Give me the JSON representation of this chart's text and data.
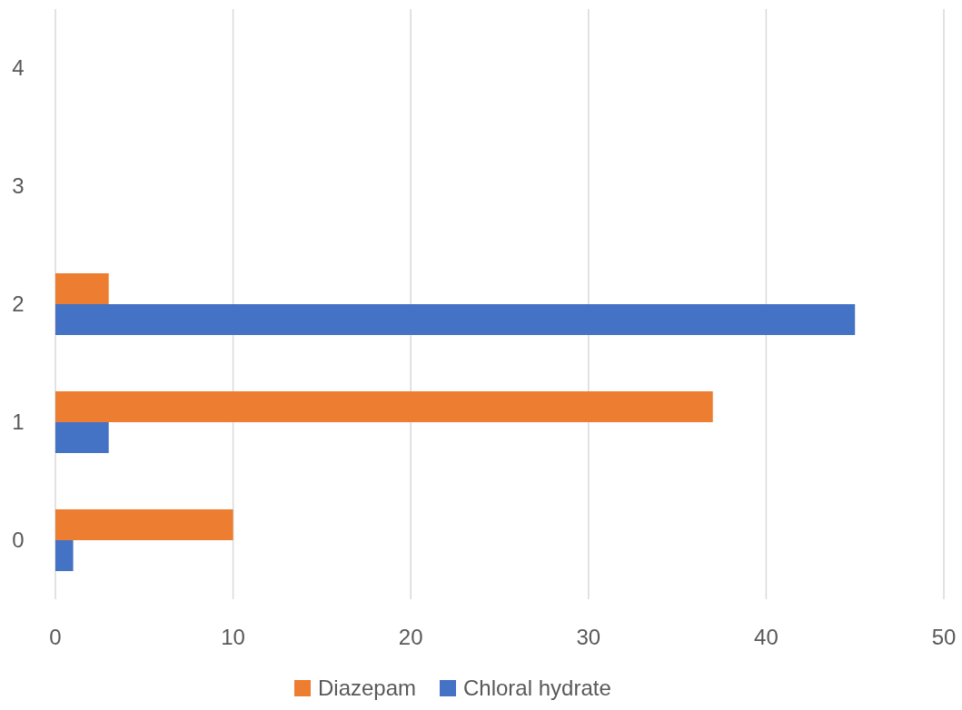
{
  "chart_data": {
    "type": "bar",
    "orientation": "horizontal",
    "categories": [
      "4",
      "3",
      "2",
      "1",
      "0"
    ],
    "series": [
      {
        "name": "Diazepam",
        "color": "#ed7d31",
        "values": [
          null,
          null,
          3,
          37,
          10
        ]
      },
      {
        "name": "Chloral hydrate",
        "color": "#4472c4",
        "values": [
          null,
          null,
          45,
          3,
          1
        ]
      }
    ],
    "xlim": [
      0,
      50
    ],
    "xticks": [
      0,
      10,
      20,
      30,
      40,
      50
    ],
    "grid": "x",
    "legend": "bottom"
  }
}
